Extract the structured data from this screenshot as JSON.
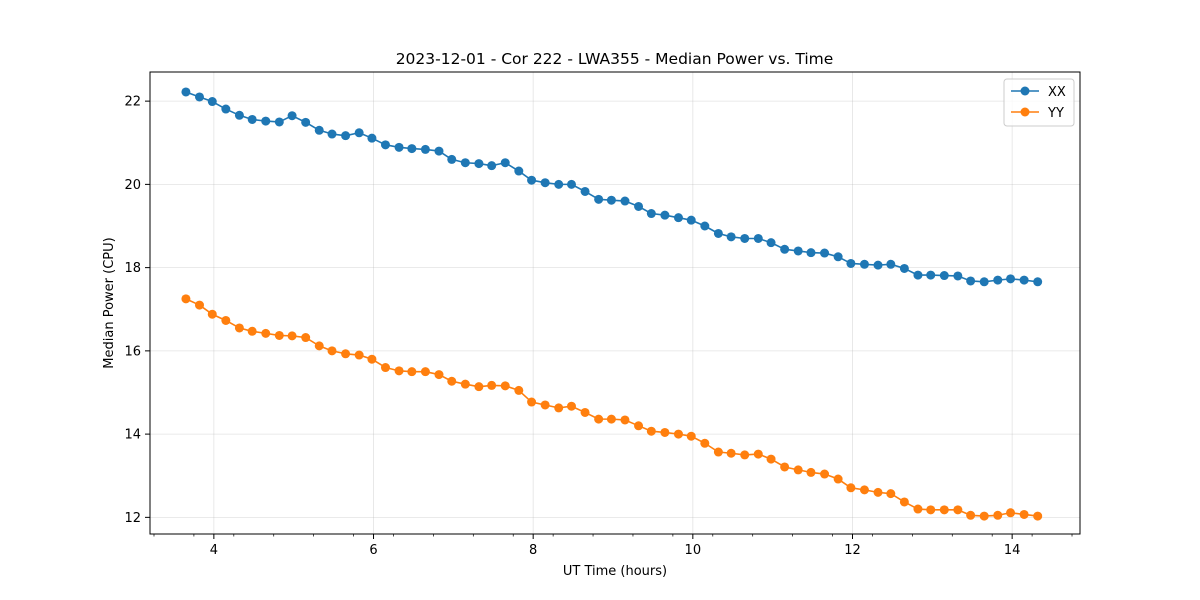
{
  "chart_data": {
    "type": "line",
    "title": "2023-12-01 - Cor 222 - LWA355 - Median Power vs. Time",
    "xlabel": "UT Time (hours)",
    "ylabel": "Median Power (CPU)",
    "xlim": [
      3.2,
      14.85
    ],
    "ylim": [
      11.6,
      22.7
    ],
    "xticks": [
      4,
      6,
      8,
      10,
      12,
      14
    ],
    "yticks": [
      12,
      14,
      16,
      18,
      20,
      22
    ],
    "grid": true,
    "legend_position": "top-right",
    "x": [
      3.65,
      3.82,
      3.98,
      4.15,
      4.32,
      4.48,
      4.65,
      4.82,
      4.98,
      5.15,
      5.32,
      5.48,
      5.65,
      5.82,
      5.98,
      6.15,
      6.32,
      6.48,
      6.65,
      6.82,
      6.98,
      7.15,
      7.32,
      7.48,
      7.65,
      7.82,
      7.98,
      8.15,
      8.32,
      8.48,
      8.65,
      8.82,
      8.98,
      9.15,
      9.32,
      9.48,
      9.65,
      9.82,
      9.98,
      10.15,
      10.32,
      10.48,
      10.65,
      10.82,
      10.98,
      11.15,
      11.32,
      11.48,
      11.65,
      11.82,
      11.98,
      12.15,
      12.32,
      12.48,
      12.65,
      12.82,
      12.98,
      13.15,
      13.32,
      13.48,
      13.65,
      13.82,
      13.98,
      14.15,
      14.32
    ],
    "series": [
      {
        "name": "XX",
        "color": "#1f77b4",
        "values": [
          22.22,
          22.1,
          21.99,
          21.81,
          21.66,
          21.56,
          21.52,
          21.5,
          21.65,
          21.49,
          21.3,
          21.21,
          21.17,
          21.24,
          21.11,
          20.95,
          20.89,
          20.86,
          20.84,
          20.8,
          20.6,
          20.52,
          20.5,
          20.45,
          20.52,
          20.32,
          20.1,
          20.04,
          20.0,
          20.0,
          19.83,
          19.64,
          19.62,
          19.6,
          19.47,
          19.3,
          19.26,
          19.2,
          19.14,
          19.0,
          18.82,
          18.74,
          18.7,
          18.7,
          18.6,
          18.44,
          18.4,
          18.36,
          18.35,
          18.26,
          18.1,
          18.08,
          18.06,
          18.08,
          17.98,
          17.82,
          17.82,
          17.81,
          17.8,
          17.68,
          17.66,
          17.7,
          17.73,
          17.7,
          17.66
        ]
      },
      {
        "name": "YY",
        "color": "#ff7f0e",
        "values": [
          17.25,
          17.1,
          16.88,
          16.73,
          16.55,
          16.47,
          16.42,
          16.37,
          16.36,
          16.32,
          16.12,
          16.0,
          15.93,
          15.9,
          15.8,
          15.6,
          15.52,
          15.5,
          15.5,
          15.43,
          15.27,
          15.2,
          15.14,
          15.17,
          15.16,
          15.05,
          14.77,
          14.7,
          14.63,
          14.67,
          14.52,
          14.36,
          14.36,
          14.34,
          14.2,
          14.07,
          14.04,
          14.0,
          13.95,
          13.78,
          13.57,
          13.54,
          13.5,
          13.52,
          13.4,
          13.21,
          13.14,
          13.08,
          13.04,
          12.92,
          12.71,
          12.66,
          12.6,
          12.57,
          12.37,
          12.2,
          12.18,
          12.18,
          12.18,
          12.05,
          12.03,
          12.05,
          12.11,
          12.07,
          12.03
        ]
      }
    ]
  }
}
